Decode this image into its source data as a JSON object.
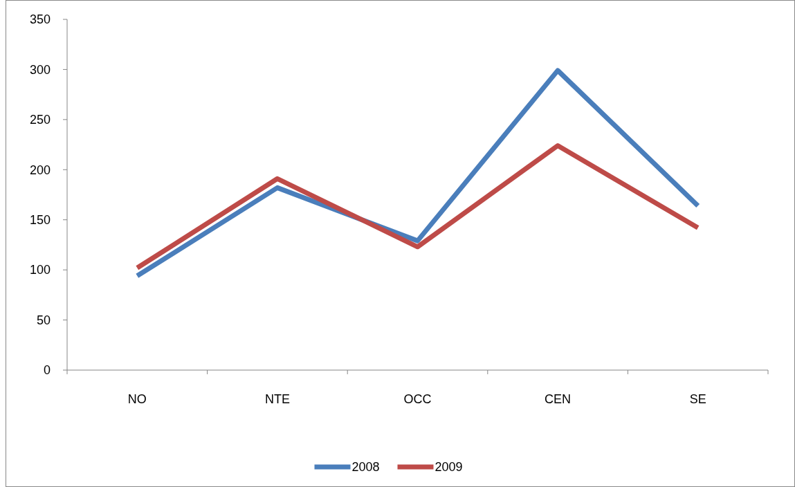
{
  "chart_data": {
    "type": "line",
    "categories": [
      "NO",
      "NTE",
      "OCC",
      "CEN",
      "SE"
    ],
    "series": [
      {
        "name": "2008",
        "color": "#4a7ebb",
        "values": [
          94,
          182,
          129,
          299,
          164
        ]
      },
      {
        "name": "2009",
        "color": "#be4b48",
        "values": [
          102,
          191,
          123,
          224,
          142
        ]
      }
    ],
    "ylim": [
      0,
      350
    ],
    "yticks": [
      0,
      50,
      100,
      150,
      200,
      250,
      300,
      350
    ],
    "grid": false,
    "legend": "bottom",
    "marker": "none",
    "line_style": "solid"
  }
}
